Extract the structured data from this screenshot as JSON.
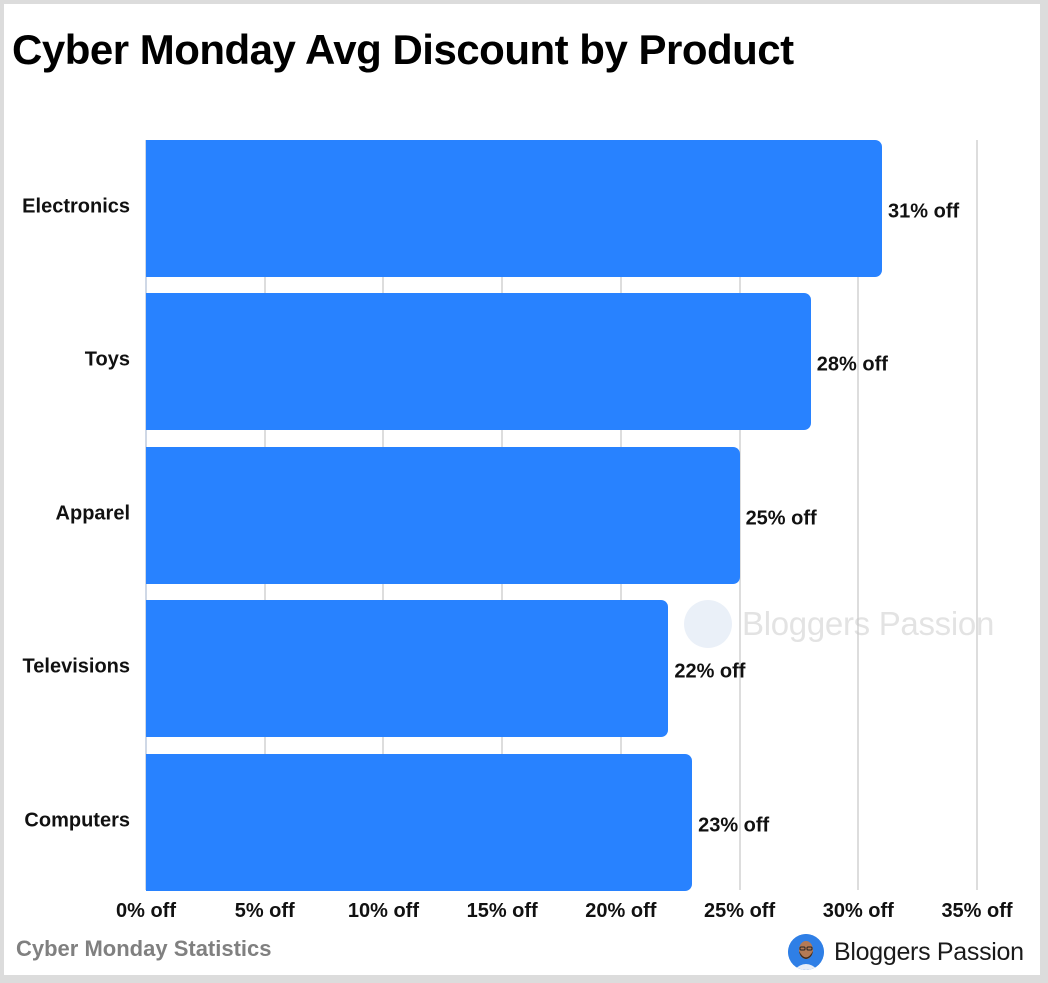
{
  "title": "Cyber Monday Avg Discount by Product",
  "source": "Cyber Monday Statistics",
  "brand": "Bloggers Passion",
  "watermark": "Bloggers Passion",
  "colors": {
    "bar": "#2882ff",
    "grid": "#dddddd",
    "text": "#111111",
    "source": "#808080"
  },
  "chart_data": {
    "type": "bar",
    "orientation": "horizontal",
    "title": "Cyber Monday Avg Discount by Product",
    "categories": [
      "Electronics",
      "Toys",
      "Apparel",
      "Televisions",
      "Computers"
    ],
    "values": [
      31,
      28,
      25,
      22,
      23
    ],
    "value_labels": [
      "31% off",
      "28% off",
      "25% off",
      "22% off",
      "23% off"
    ],
    "xlabel": "",
    "ylabel": "",
    "xlim": [
      0,
      35
    ],
    "xticks": [
      0,
      5,
      10,
      15,
      20,
      25,
      30,
      35
    ],
    "xtick_labels": [
      "0% off",
      "5% off",
      "10% off",
      "15% off",
      "20% off",
      "25% off",
      "30% off",
      "35% off"
    ],
    "grid": "vertical",
    "legend": "none",
    "unit": "% off"
  }
}
